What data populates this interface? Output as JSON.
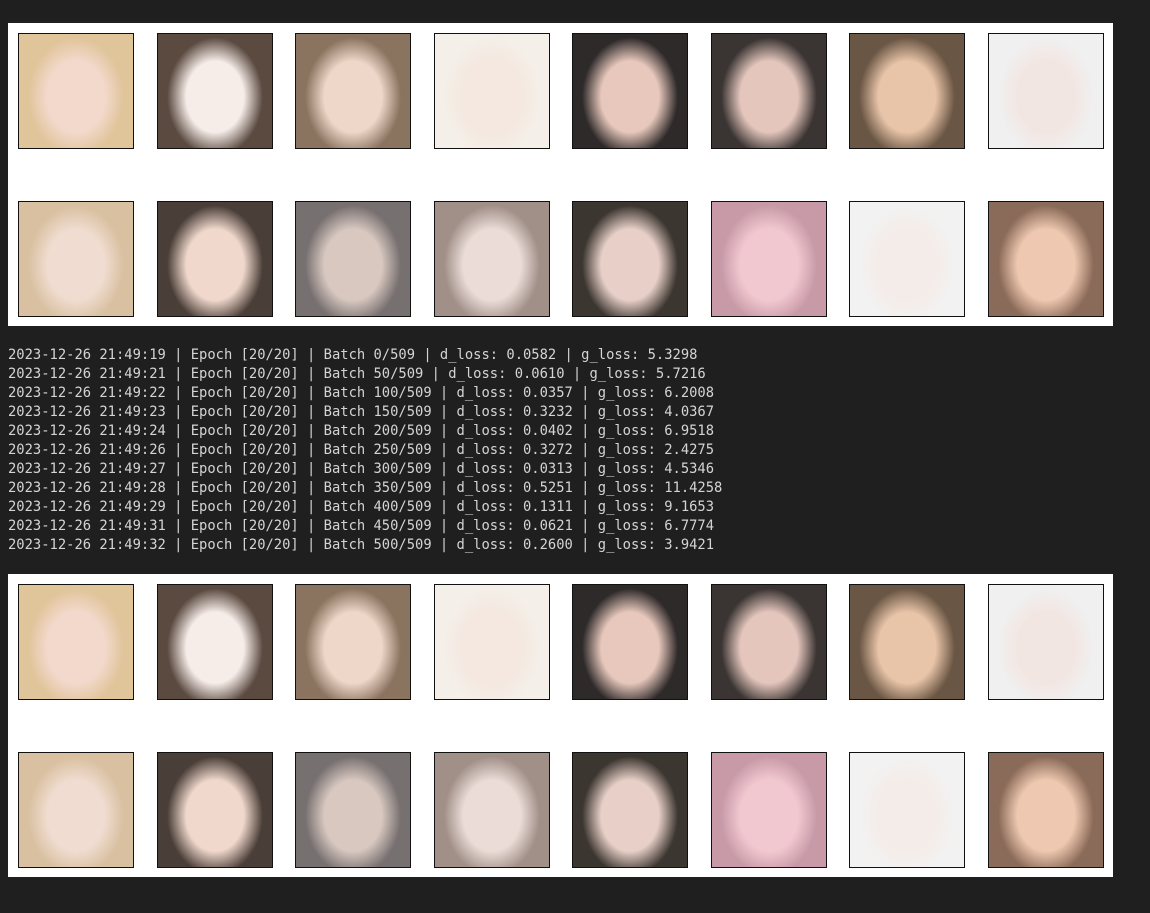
{
  "log_lines": [
    "2023-12-26 21:49:19 | Epoch [20/20] | Batch 0/509 | d_loss: 0.0582 | g_loss: 5.3298",
    "2023-12-26 21:49:21 | Epoch [20/20] | Batch 50/509 | d_loss: 0.0610 | g_loss: 5.7216",
    "2023-12-26 21:49:22 | Epoch [20/20] | Batch 100/509 | d_loss: 0.0357 | g_loss: 6.2008",
    "2023-12-26 21:49:23 | Epoch [20/20] | Batch 150/509 | d_loss: 0.3232 | g_loss: 4.0367",
    "2023-12-26 21:49:24 | Epoch [20/20] | Batch 200/509 | d_loss: 0.0402 | g_loss: 6.9518",
    "2023-12-26 21:49:26 | Epoch [20/20] | Batch 250/509 | d_loss: 0.3272 | g_loss: 2.4275",
    "2023-12-26 21:49:27 | Epoch [20/20] | Batch 300/509 | d_loss: 0.0313 | g_loss: 4.5346",
    "2023-12-26 21:49:28 | Epoch [20/20] | Batch 350/509 | d_loss: 0.5251 | g_loss: 11.4258",
    "2023-12-26 21:49:29 | Epoch [20/20] | Batch 400/509 | d_loss: 0.1311 | g_loss: 9.1653",
    "2023-12-26 21:49:31 | Epoch [20/20] | Batch 450/509 | d_loss: 0.0621 | g_loss: 6.7774",
    "2023-12-26 21:49:32 | Epoch [20/20] | Batch 500/509 | d_loss: 0.2600 | g_loss: 3.9421"
  ]
}
